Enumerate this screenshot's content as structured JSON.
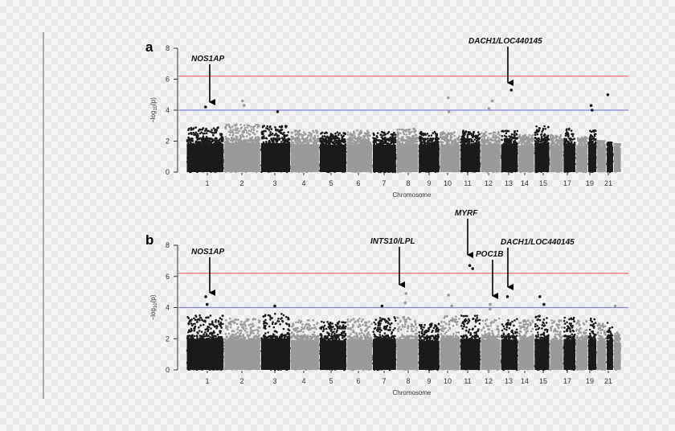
{
  "colors": {
    "dark_points": "#1a1a1a",
    "light_points": "#9a9a9a",
    "genome_wide_line": "#e8706e",
    "suggestive_line": "#7f86d6",
    "axis": "#333333"
  },
  "chart_data": [
    {
      "type": "scatter",
      "panel_label": "a",
      "title": "",
      "xlabel": "Chromosome",
      "ylabel_prefix": "−log",
      "ylabel_sub": "10",
      "ylabel_suffix": "(p)",
      "ylim": [
        0,
        8
      ],
      "yticks": [
        0,
        2,
        4,
        6,
        8
      ],
      "chromosome_ticks": [
        "1",
        "2",
        "3",
        "4",
        "5",
        "6",
        "7",
        "8",
        "9",
        "10",
        "11",
        "12",
        "13",
        "14",
        "15",
        "17",
        "19",
        "21"
      ],
      "genome_wide_threshold": 6.2,
      "suggestive_threshold": 4.0,
      "chromosome_background_max": [
        2.9,
        3.1,
        3.0,
        2.7,
        2.6,
        2.7,
        2.6,
        2.8,
        2.6,
        2.6,
        2.7,
        2.6,
        2.7,
        2.4,
        3.0,
        2.4,
        2.9,
        2.3,
        2.7,
        2.0,
        1.9,
        1.8
      ],
      "highlight_points": [
        {
          "chromosome": 1,
          "value": 4.2
        },
        {
          "chromosome": 2,
          "value": 4.6
        },
        {
          "chromosome": 2,
          "value": 4.3
        },
        {
          "chromosome": 3,
          "value": 3.9
        },
        {
          "chromosome": 10,
          "value": 4.8
        },
        {
          "chromosome": 10,
          "value": 3.9
        },
        {
          "chromosome": 12,
          "value": 4.6
        },
        {
          "chromosome": 12,
          "value": 4.1
        },
        {
          "chromosome": 13,
          "value": 5.3
        },
        {
          "chromosome": 19,
          "value": 4.3
        },
        {
          "chromosome": 19,
          "value": 4.0
        },
        {
          "chromosome": 21,
          "value": 5.0
        }
      ],
      "annotations": [
        {
          "label": "NOS1AP",
          "chromosome": 1,
          "value": 4.2
        },
        {
          "label": "DACH1/LOC440145",
          "chromosome": 13,
          "value": 5.3
        }
      ]
    },
    {
      "type": "scatter",
      "panel_label": "b",
      "title": "",
      "xlabel": "Chromosome",
      "ylabel_prefix": "−log",
      "ylabel_sub": "10",
      "ylabel_suffix": "(p)",
      "ylim": [
        0,
        8
      ],
      "yticks": [
        0,
        2,
        4,
        6,
        8
      ],
      "chromosome_ticks": [
        "1",
        "2",
        "3",
        "4",
        "5",
        "6",
        "7",
        "8",
        "9",
        "10",
        "11",
        "12",
        "13",
        "14",
        "15",
        "17",
        "19",
        "21"
      ],
      "genome_wide_threshold": 6.2,
      "suggestive_threshold": 4.0,
      "chromosome_background_max": [
        3.5,
        3.3,
        3.6,
        3.2,
        3.1,
        3.3,
        3.4,
        3.5,
        3.0,
        3.5,
        3.5,
        3.3,
        3.3,
        3.2,
        3.5,
        3.2,
        3.4,
        3.2,
        3.3,
        3.0,
        3.1,
        2.6
      ],
      "highlight_points": [
        {
          "chromosome": 1,
          "value": 4.7
        },
        {
          "chromosome": 1,
          "value": 4.2
        },
        {
          "chromosome": 3,
          "value": 4.1
        },
        {
          "chromosome": 7,
          "value": 4.1
        },
        {
          "chromosome": 8,
          "value": 4.9
        },
        {
          "chromosome": 8,
          "value": 4.3
        },
        {
          "chromosome": 10,
          "value": 4.8
        },
        {
          "chromosome": 10,
          "value": 4.1
        },
        {
          "chromosome": 11,
          "value": 6.7
        },
        {
          "chromosome": 11,
          "value": 6.5
        },
        {
          "chromosome": 12,
          "value": 4.2
        },
        {
          "chromosome": 12,
          "value": 3.9
        },
        {
          "chromosome": 13,
          "value": 4.7
        },
        {
          "chromosome": 15,
          "value": 4.7
        },
        {
          "chromosome": 15,
          "value": 4.2
        },
        {
          "chromosome": 22,
          "value": 4.1
        }
      ],
      "annotations": [
        {
          "label": "NOS1AP",
          "chromosome": 1,
          "value": 4.7
        },
        {
          "label": "INTS10/LPL",
          "chromosome": 8,
          "value": 4.9
        },
        {
          "label": "MYRF",
          "chromosome": 11,
          "value": 6.7
        },
        {
          "label": "POC1B",
          "chromosome": 12,
          "value": 4.2
        },
        {
          "label": "DACH1/LOC440145",
          "chromosome": 13,
          "value": 4.7
        }
      ]
    }
  ]
}
